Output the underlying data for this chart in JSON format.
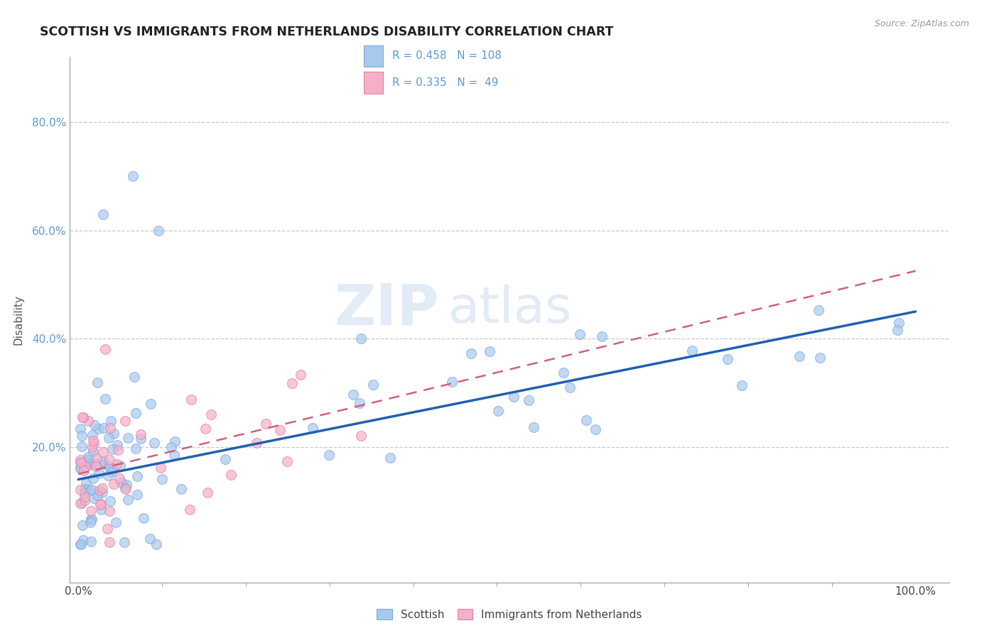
{
  "title": "SCOTTISH VS IMMIGRANTS FROM NETHERLANDS DISABILITY CORRELATION CHART",
  "source": "Source: ZipAtlas.com",
  "ylabel": "Disability",
  "xlim": [
    -0.01,
    1.04
  ],
  "ylim": [
    -0.05,
    0.92
  ],
  "ytick_values": [
    0.2,
    0.4,
    0.6,
    0.8
  ],
  "grid_color": "#c8c8d0",
  "background_color": "#ffffff",
  "scottish_color": "#a8c8ee",
  "scottish_edge_color": "#7aaade",
  "scottish_line_color": "#2060b0",
  "netherlands_color": "#f5b0c8",
  "netherlands_edge_color": "#e080a8",
  "netherlands_line_color": "#d06080",
  "R_scottish": 0.458,
  "N_scottish": 108,
  "R_netherlands": 0.335,
  "N_netherlands": 49,
  "legend_label_scottish": "Scottish",
  "legend_label_netherlands": "Immigrants from Netherlands",
  "watermark_zip": "ZIP",
  "watermark_atlas": "atlas",
  "title_color": "#222222",
  "label_color": "#5b9bd5",
  "axis_color": "#999999"
}
